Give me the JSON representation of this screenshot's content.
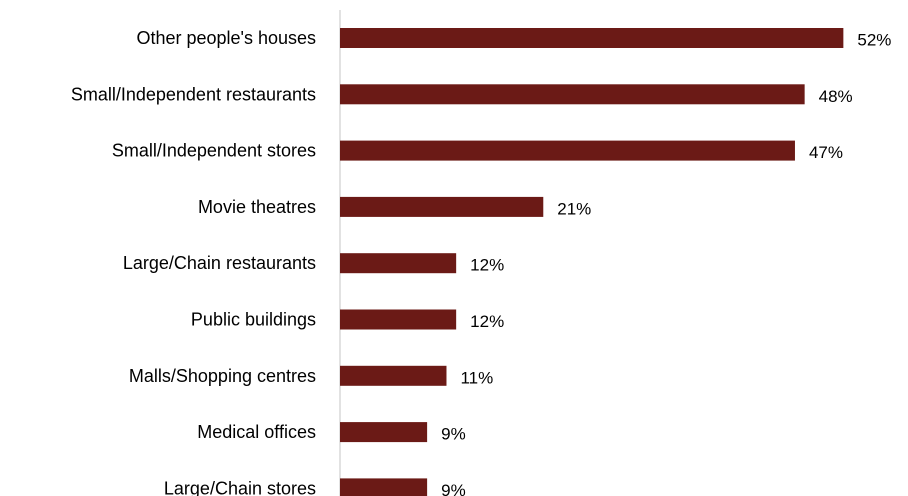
{
  "chart_data": {
    "type": "bar",
    "orientation": "horizontal",
    "categories": [
      "Other people's houses",
      "Small/Independent restaurants",
      "Small/Independent stores",
      "Movie theatres",
      "Large/Chain restaurants",
      "Public buildings",
      "Malls/Shopping centres",
      "Medical offices",
      "Large/Chain stores"
    ],
    "values": [
      52,
      48,
      47,
      21,
      12,
      12,
      11,
      9,
      9
    ],
    "value_labels": [
      "52%",
      "48%",
      "47%",
      "21%",
      "12%",
      "12%",
      "11%",
      "9%",
      "9%"
    ],
    "bar_color": "#6b1a16",
    "axis_color": "#d9d9d9",
    "title": "",
    "xlabel": "",
    "ylabel": "",
    "xlim": [
      0,
      55
    ],
    "grid": false,
    "legend": "none"
  }
}
